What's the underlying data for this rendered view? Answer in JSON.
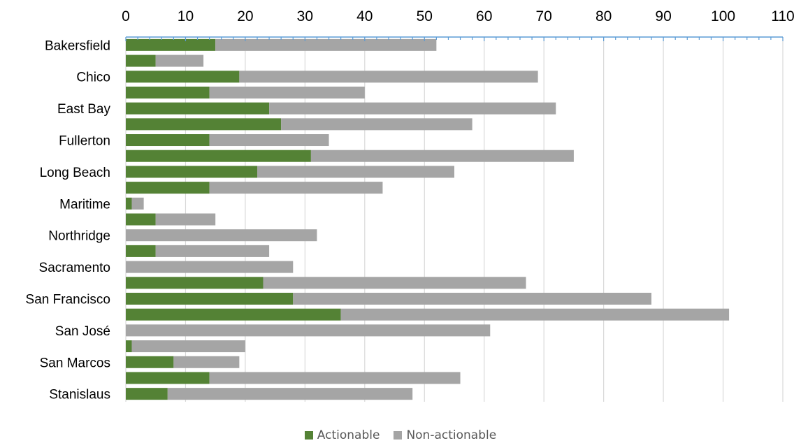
{
  "chart_data": {
    "type": "bar",
    "orientation": "horizontal",
    "stacked": true,
    "title": "",
    "xlabel": "",
    "ylabel": "",
    "xlim": [
      0,
      110
    ],
    "x_ticks": [
      0,
      10,
      20,
      30,
      40,
      50,
      60,
      70,
      80,
      90,
      100,
      110
    ],
    "x_axis_position": "top",
    "grid": "vertical",
    "legend": "bottom-center",
    "y_tick_labels": [
      "Bakersfield",
      "Chico",
      "East Bay",
      "Fullerton",
      "Long Beach",
      "Maritime",
      "Northridge",
      "Sacramento",
      "San Francisco",
      "San José",
      "San Marcos",
      "Stanislaus"
    ],
    "bar_count": 23,
    "series": [
      {
        "name": "Actionable",
        "color": "#548235",
        "values": [
          15,
          5,
          19,
          14,
          24,
          26,
          14,
          31,
          22,
          14,
          1,
          5,
          0,
          5,
          0,
          23,
          28,
          36,
          0,
          1,
          8,
          14,
          7
        ]
      },
      {
        "name": "Non-actionable",
        "color": "#A5A5A5",
        "values": [
          37,
          8,
          50,
          26,
          48,
          32,
          20,
          44,
          33,
          29,
          2,
          10,
          32,
          19,
          28,
          44,
          60,
          65,
          61,
          19,
          11,
          42,
          41
        ]
      }
    ]
  }
}
